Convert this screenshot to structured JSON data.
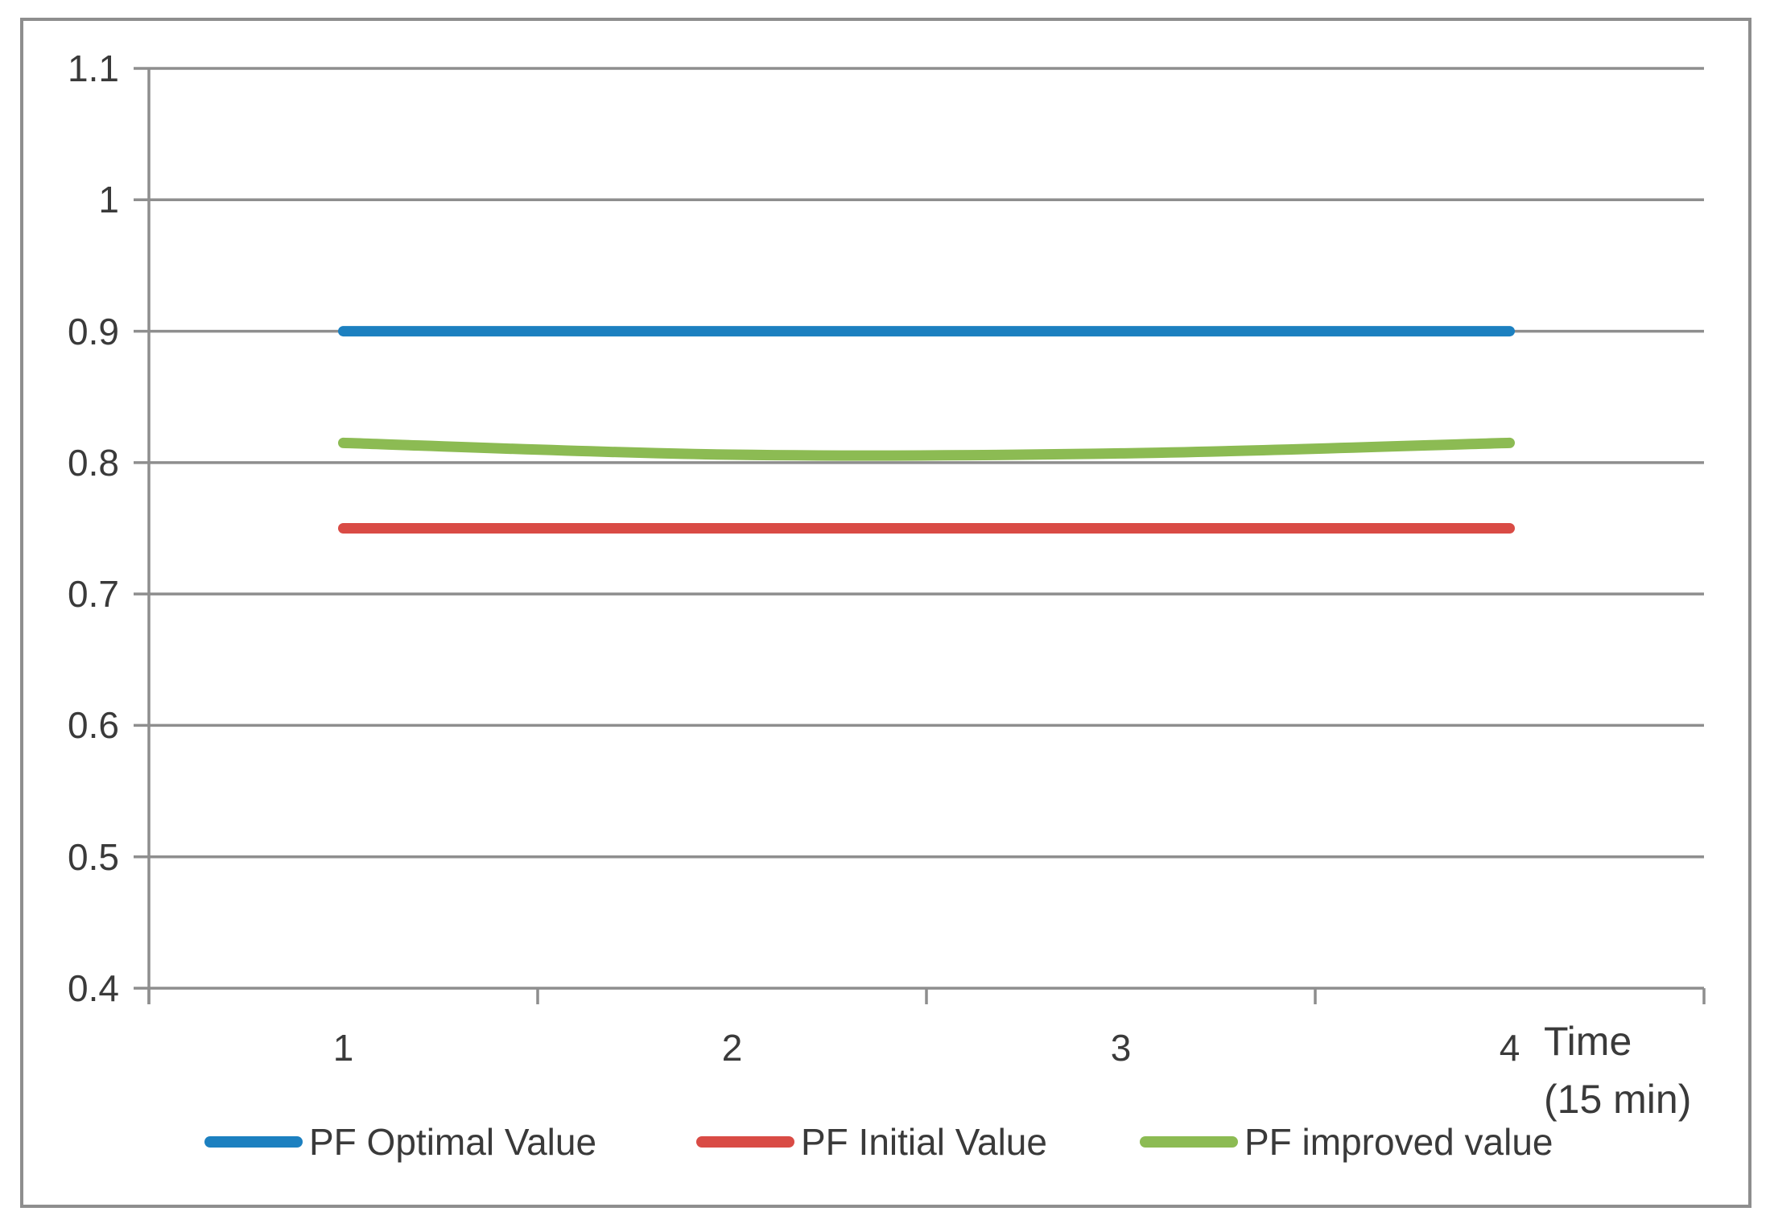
{
  "chart_data": {
    "type": "line",
    "title": "",
    "x": [
      1,
      2,
      3,
      4
    ],
    "x_tick_labels": [
      "1",
      "2",
      "3",
      "4"
    ],
    "xlabel": "Time (15 min)",
    "xlabel_lines": [
      "Time",
      "(15 min)"
    ],
    "ylabel": "",
    "ylim": [
      0.4,
      1.1
    ],
    "y_ticks": [
      1.1,
      1.0,
      0.9,
      0.8,
      0.7,
      0.6,
      0.5,
      0.4
    ],
    "y_tick_labels": [
      "1.1",
      "1",
      "0.9",
      "0.8",
      "0.7",
      "0.6",
      "0.5",
      "0.4"
    ],
    "grid": "horizontal",
    "legend_position": "bottom",
    "series": [
      {
        "name": "PF Optimal Value",
        "color": "#1C80C0",
        "values": [
          0.9,
          0.9,
          0.9,
          0.9
        ],
        "smooth": false
      },
      {
        "name": "PF Initial Value",
        "color": "#D94B45",
        "values": [
          0.75,
          0.75,
          0.75,
          0.75
        ],
        "smooth": false
      },
      {
        "name": "PF improved value",
        "color": "#8CBB53",
        "values": [
          0.815,
          0.806,
          0.807,
          0.815
        ],
        "smooth": true
      }
    ],
    "colors": {
      "gridline": "#8E8E8E",
      "axis_line": "#8E8E8E",
      "text": "#3A3A3A",
      "frame_border": "#8E8E8E"
    }
  }
}
